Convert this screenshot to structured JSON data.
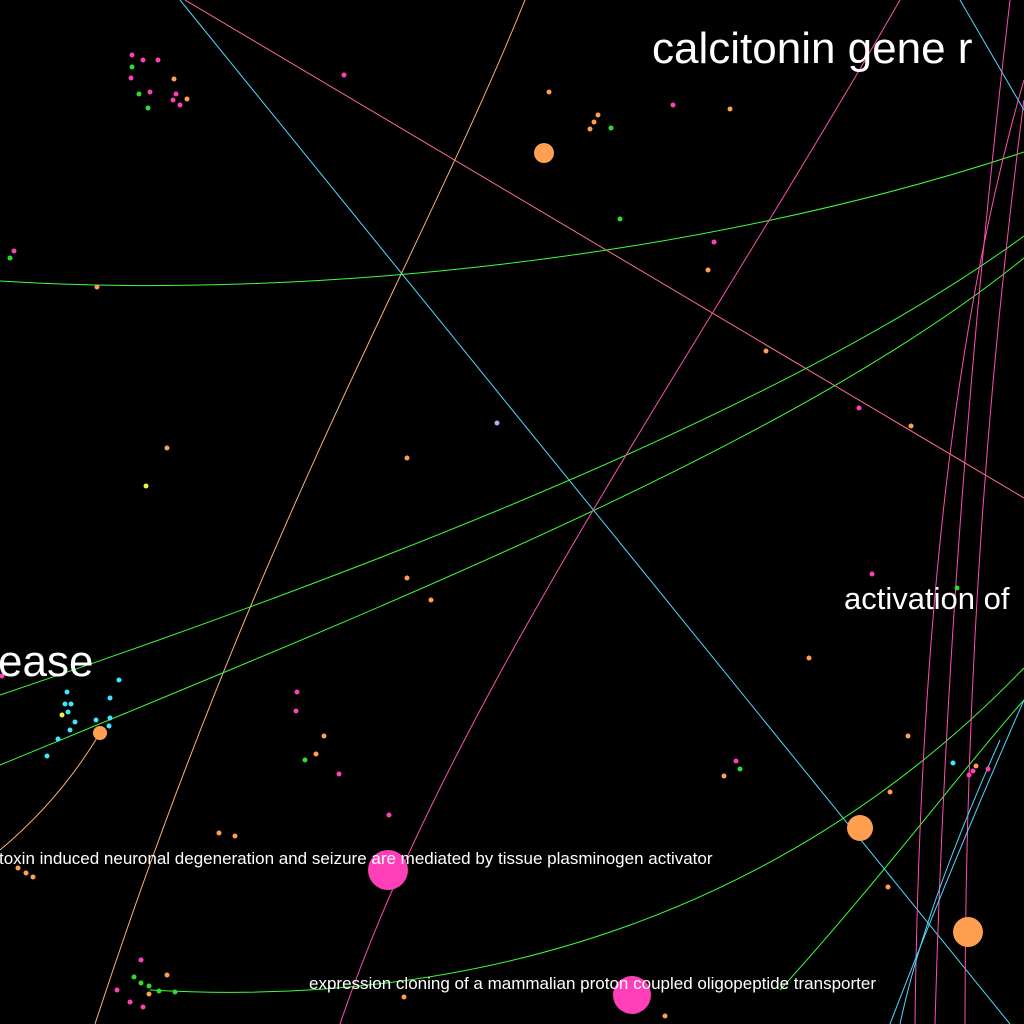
{
  "palette": {
    "background": "#000000",
    "label": "#ffffff",
    "orange": "#ff9f4f",
    "pink": "#ff3fb7",
    "green": "#2edc2e",
    "cyan": "#3fe6ff",
    "yellow": "#f2f23a",
    "lavender": "#b9a8ff",
    "line_salmon": "#ff6f8a",
    "line_orange": "#ffb070",
    "line_cyan": "#4fd9ff",
    "line_green": "#3cff3c",
    "line_pink": "#ff4fb0"
  },
  "labels": {
    "label_top": "calcitonin gene r",
    "label_left": "ease",
    "label_right": "activation of",
    "label_tpa": "toxin induced neuronal degeneration and seizure are mediated by tissue plasminogen activator",
    "label_transporter": "expression cloning of a mammalian proton coupled oligopeptide transporter"
  }
}
